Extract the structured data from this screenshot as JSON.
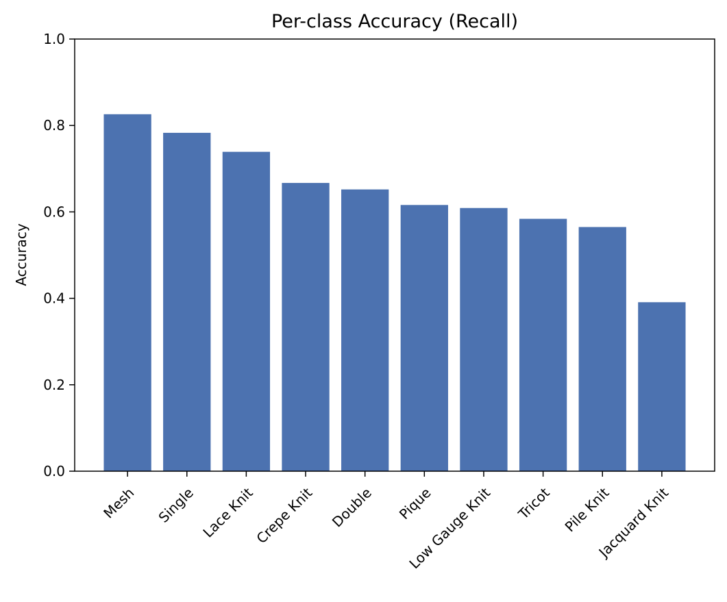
{
  "chart_data": {
    "type": "bar",
    "title": "Per-class Accuracy (Recall)",
    "xlabel": "",
    "ylabel": "Accuracy",
    "categories": [
      "Mesh",
      "Single",
      "Lace Knit",
      "Crepe Knit",
      "Double",
      "Pique",
      "Low Gauge Knit",
      "Tricot",
      "Pile Knit",
      "Jacquard Knit"
    ],
    "values": [
      0.826,
      0.783,
      0.739,
      0.667,
      0.652,
      0.616,
      0.609,
      0.584,
      0.565,
      0.391
    ],
    "ylim": [
      0,
      1.0
    ],
    "yticks": [
      "0.0",
      "0.2",
      "0.4",
      "0.6",
      "0.8",
      "1.0"
    ],
    "bar_color": "#4c72b0",
    "grid": false,
    "legend": "none"
  }
}
